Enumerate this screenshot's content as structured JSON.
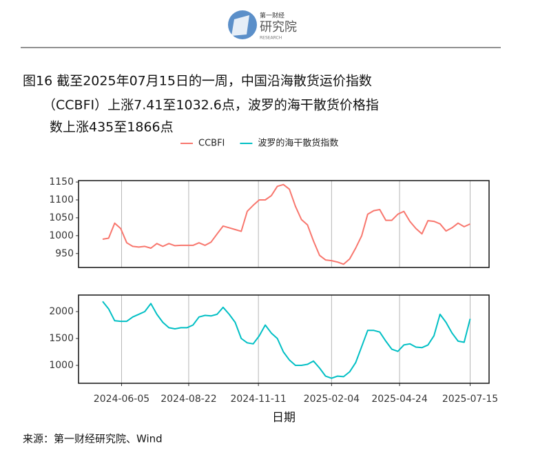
{
  "logo": {
    "brand": "第一财经",
    "name": "研究院",
    "sub": "RESEARCH"
  },
  "title_lines": [
    "图16  截至2025年07月15日的一周，中国沿海散货运价指数",
    "（CCBFI）上涨7.41至1032.6点，波罗的海干散货价格指",
    "数上涨435至1866点"
  ],
  "source": "来源：第一财经研究院、Wind",
  "chart_data": [
    {
      "type": "line",
      "x": [
        "2024-05-14",
        "2024-05-21",
        "2024-05-28",
        "2024-06-04",
        "2024-06-11",
        "2024-06-18",
        "2024-06-25",
        "2024-07-02",
        "2024-07-09",
        "2024-07-16",
        "2024-07-23",
        "2024-07-30",
        "2024-08-06",
        "2024-08-13",
        "2024-08-20",
        "2024-08-27",
        "2024-09-03",
        "2024-09-10",
        "2024-09-17",
        "2024-09-24",
        "2024-10-01",
        "2024-10-08",
        "2024-10-15",
        "2024-10-22",
        "2024-10-29",
        "2024-11-05",
        "2024-11-12",
        "2024-11-19",
        "2024-11-26",
        "2024-12-03",
        "2024-12-10",
        "2024-12-17",
        "2024-12-24",
        "2024-12-31",
        "2025-01-07",
        "2025-01-14",
        "2025-01-21",
        "2025-01-28",
        "2025-02-04",
        "2025-02-11",
        "2025-02-18",
        "2025-02-25",
        "2025-03-04",
        "2025-03-11",
        "2025-03-18",
        "2025-03-25",
        "2025-04-01",
        "2025-04-08",
        "2025-04-15",
        "2025-04-22",
        "2025-04-29",
        "2025-05-06",
        "2025-05-13",
        "2025-05-20",
        "2025-05-27",
        "2025-06-03",
        "2025-06-10",
        "2025-06-17",
        "2025-06-24",
        "2025-07-01",
        "2025-07-08",
        "2025-07-15"
      ],
      "xlim": [
        "2024-04-16",
        "2025-08-06"
      ],
      "ylim": [
        911,
        1154
      ],
      "yticks": [
        950,
        1000,
        1050,
        1100,
        1150
      ],
      "series": [
        {
          "name": "CCBFI",
          "color": "#F8766D",
          "values": [
            990,
            993,
            1035,
            1020,
            980,
            970,
            968,
            970,
            965,
            978,
            970,
            978,
            972,
            973,
            973,
            973,
            980,
            973,
            982,
            1005,
            1027,
            1022,
            1017,
            1012,
            1068,
            1085,
            1100,
            1100,
            1112,
            1138,
            1143,
            1130,
            1082,
            1045,
            1030,
            985,
            945,
            932,
            930,
            926,
            920,
            935,
            965,
            1000,
            1060,
            1070,
            1073,
            1043,
            1043,
            1060,
            1068,
            1040,
            1020,
            1005,
            1042,
            1040,
            1033,
            1013,
            1022,
            1035,
            1025,
            1032.6
          ]
        }
      ]
    },
    {
      "type": "line",
      "x": [
        "2024-05-14",
        "2024-05-21",
        "2024-05-28",
        "2024-06-04",
        "2024-06-11",
        "2024-06-18",
        "2024-06-25",
        "2024-07-02",
        "2024-07-09",
        "2024-07-16",
        "2024-07-23",
        "2024-07-30",
        "2024-08-06",
        "2024-08-13",
        "2024-08-20",
        "2024-08-27",
        "2024-09-03",
        "2024-09-10",
        "2024-09-17",
        "2024-09-24",
        "2024-10-01",
        "2024-10-08",
        "2024-10-15",
        "2024-10-22",
        "2024-10-29",
        "2024-11-05",
        "2024-11-12",
        "2024-11-19",
        "2024-11-26",
        "2024-12-03",
        "2024-12-10",
        "2024-12-17",
        "2024-12-24",
        "2024-12-31",
        "2025-01-07",
        "2025-01-14",
        "2025-01-21",
        "2025-01-28",
        "2025-02-04",
        "2025-02-11",
        "2025-02-18",
        "2025-02-25",
        "2025-03-04",
        "2025-03-11",
        "2025-03-18",
        "2025-03-25",
        "2025-04-01",
        "2025-04-08",
        "2025-04-15",
        "2025-04-22",
        "2025-04-29",
        "2025-05-06",
        "2025-05-13",
        "2025-05-20",
        "2025-05-27",
        "2025-06-03",
        "2025-06-10",
        "2025-06-17",
        "2025-06-24",
        "2025-07-01",
        "2025-07-08",
        "2025-07-15"
      ],
      "xlim": [
        "2024-04-16",
        "2025-08-06"
      ],
      "ylim": [
        667,
        2308
      ],
      "yticks": [
        1000,
        1500,
        2000
      ],
      "xticks": [
        "2024-06-05",
        "2024-08-22",
        "2024-11-11",
        "2025-02-04",
        "2025-04-24",
        "2025-07-15"
      ],
      "xlabel": "日期",
      "series": [
        {
          "name": "波罗的海干散货指数",
          "color": "#00BFC4",
          "values": [
            2190,
            2050,
            1830,
            1820,
            1820,
            1900,
            1950,
            2000,
            2150,
            1950,
            1800,
            1700,
            1680,
            1700,
            1700,
            1750,
            1900,
            1930,
            1920,
            1950,
            2080,
            1950,
            1800,
            1500,
            1420,
            1400,
            1550,
            1750,
            1600,
            1500,
            1250,
            1100,
            1000,
            1000,
            1020,
            1080,
            950,
            800,
            760,
            800,
            790,
            880,
            1050,
            1350,
            1650,
            1650,
            1620,
            1450,
            1300,
            1260,
            1380,
            1400,
            1340,
            1330,
            1380,
            1550,
            1950,
            1800,
            1600,
            1450,
            1430,
            1866
          ]
        }
      ]
    }
  ]
}
